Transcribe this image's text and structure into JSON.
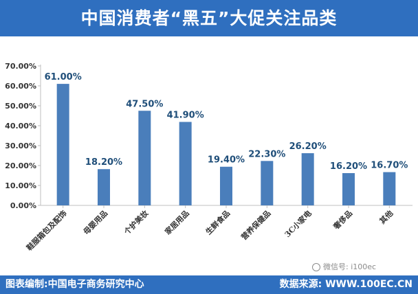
{
  "header": {
    "title": "中国消费者“黑五”大促关注品类"
  },
  "footer": {
    "left": "图表编制:中国电子商务研究中心",
    "right": "数据来源: WWW.100EC.CN"
  },
  "watermark": {
    "text": "微信号: i100ec"
  },
  "colors": {
    "accent": "#2f6fbf",
    "bar": "#4a7ebb",
    "label": "#1f4e79"
  },
  "chart_data": {
    "type": "bar",
    "title": "中国消费者“黑五”大促关注品类",
    "categories": [
      "鞋服箱包及配饰",
      "母婴用品",
      "个护美妆",
      "家居用品",
      "生鲜食品",
      "营养保健品",
      "3C小家电",
      "奢侈品",
      "其他"
    ],
    "values": [
      61.0,
      18.2,
      47.5,
      41.9,
      19.4,
      22.3,
      26.2,
      16.2,
      16.7
    ],
    "data_labels": [
      "61.00%",
      "18.20%",
      "47.50%",
      "41.90%",
      "19.40%",
      "22.30%",
      "26.20%",
      "16.20%",
      "16.70%"
    ],
    "yticks": [
      0,
      10,
      20,
      30,
      40,
      50,
      60,
      70
    ],
    "ytick_labels": [
      "0.00%",
      "10.00%",
      "20.00%",
      "30.00%",
      "40.00%",
      "50.00%",
      "60.00%",
      "70.00%"
    ],
    "ylim": [
      0,
      70
    ],
    "xlabel": "",
    "ylabel": "",
    "grid": false,
    "legend": "none"
  }
}
